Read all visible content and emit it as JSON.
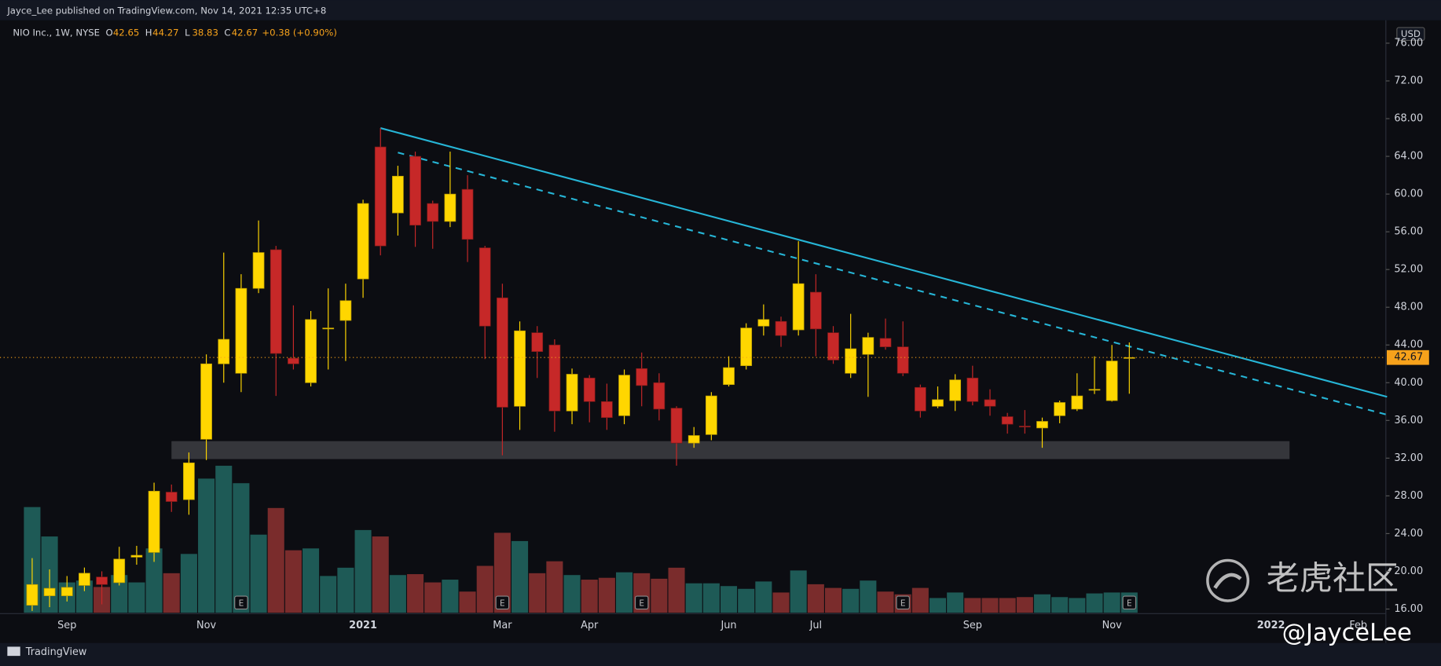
{
  "chart_data": {
    "type": "candlestick",
    "publisher": "Jayce_Lee published on TradingView.com, Nov 14, 2021 12:35 UTC+8",
    "title": "NIO Inc., 1W, NYSE",
    "ohlc_letters": [
      "O",
      "H",
      "L",
      "C"
    ],
    "change": "+0.38 (+0.90%)",
    "currency": "USD",
    "brand": "TradingView",
    "watermark": "老虎社区",
    "author_tag": "@JayceLee",
    "earnings_marker": "E",
    "earnings_weeks": [
      12,
      27,
      35,
      50,
      63
    ],
    "up_color": "#ffd600",
    "down_color": "#c62828",
    "volume_up_color": "#1e5a56",
    "volume_down_color": "#7a2c2c",
    "categories": [
      null,
      null,
      "Sep",
      null,
      null,
      null,
      null,
      null,
      null,
      null,
      "Nov",
      null,
      null,
      null,
      null,
      null,
      null,
      null,
      null,
      "2021",
      null,
      null,
      null,
      null,
      null,
      null,
      null,
      "Mar",
      null,
      null,
      null,
      null,
      "Apr",
      null,
      null,
      null,
      null,
      null,
      null,
      null,
      "Jun",
      null,
      null,
      null,
      null,
      "Jul",
      null,
      null,
      null,
      null,
      null,
      null,
      null,
      null,
      "Sep",
      null,
      null,
      null,
      null,
      null,
      null,
      null,
      "Nov",
      null
    ],
    "future_categories": [
      "2022",
      "Feb"
    ],
    "open": [
      16.4,
      17.4,
      17.4,
      18.5,
      19.4,
      18.8,
      21.5,
      22,
      28.4,
      27.6,
      34,
      42,
      41,
      50,
      54.1,
      42.6,
      40,
      45.7,
      46.6,
      51,
      65,
      58,
      64,
      59,
      57.1,
      60.5,
      54.3,
      49,
      37.5,
      45.3,
      44,
      37,
      40.5,
      38,
      36.5,
      41.5,
      40,
      37.3,
      33.6,
      34.5,
      39.8,
      41.8,
      46,
      46.5,
      45.6,
      49.6,
      45.3,
      41,
      43,
      44.7,
      43.8,
      39.5,
      37.5,
      38.1,
      40.5,
      38.2,
      36.4,
      35.4,
      35.2,
      36.5,
      37.2,
      39.2,
      38.1,
      42.65
    ],
    "high": [
      21.4,
      20.2,
      19.5,
      20.4,
      20,
      22.6,
      22.7,
      29.4,
      29.2,
      32.6,
      43,
      53.8,
      51.5,
      57.2,
      54.5,
      48.2,
      47.6,
      50,
      50.5,
      59.4,
      67,
      63,
      64.5,
      59.3,
      64.5,
      62,
      54.5,
      50.5,
      46.5,
      46,
      44.6,
      41.5,
      40.8,
      39.9,
      41.4,
      43.2,
      41,
      37.5,
      35.3,
      39,
      42.8,
      46.3,
      48.3,
      47,
      55,
      51.5,
      46,
      47.3,
      45.3,
      46.8,
      46.5,
      39.8,
      39.6,
      40.9,
      41.8,
      39.3,
      36.8,
      37.1,
      36.3,
      38.1,
      41,
      42.8,
      44,
      44.27
    ],
    "low": [
      15.8,
      16.2,
      16.8,
      17.9,
      16.5,
      18.5,
      20.7,
      21,
      26.3,
      26,
      31.8,
      40,
      39,
      49.5,
      38.6,
      41.4,
      39.6,
      41.4,
      42.3,
      49,
      53.5,
      55.6,
      54.4,
      54.2,
      56.5,
      52.8,
      42.5,
      32.3,
      35,
      40.5,
      34.8,
      35.6,
      35.8,
      35,
      35.6,
      37.5,
      36,
      31.2,
      33.1,
      33.9,
      39.6,
      41.4,
      45,
      43.8,
      45,
      42.8,
      42,
      40.5,
      38.5,
      43.5,
      40.7,
      36.3,
      37.3,
      37,
      37.6,
      36.5,
      34.6,
      34.6,
      33.1,
      35.7,
      37,
      38.8,
      38,
      38.83
    ],
    "close": [
      18.6,
      18.2,
      18.3,
      19.8,
      18.6,
      21.3,
      21.7,
      28.5,
      27.4,
      31.5,
      42,
      44.6,
      50,
      53.8,
      43.1,
      42,
      46.7,
      45.8,
      48.7,
      59,
      54.5,
      61.9,
      56.7,
      57.1,
      60,
      55.2,
      46,
      37.4,
      45.5,
      43.3,
      37,
      40.9,
      38,
      36.3,
      40.8,
      39.7,
      37.2,
      33.6,
      34.4,
      38.6,
      41.6,
      45.8,
      46.7,
      45,
      50.5,
      45.7,
      42.4,
      43.6,
      44.8,
      43.8,
      41,
      37,
      38.2,
      40.3,
      38,
      37.5,
      35.6,
      35.3,
      35.9,
      37.9,
      38.6,
      39.3,
      42.3,
      42.67
    ],
    "volume": [
      115,
      83,
      33,
      35,
      28,
      41,
      33,
      70,
      43,
      64,
      146,
      160,
      141,
      85,
      114,
      68,
      70,
      40,
      49,
      90,
      83,
      41,
      42,
      33,
      36,
      23,
      51,
      87,
      78,
      43,
      56,
      41,
      36,
      38,
      44,
      43,
      37,
      49,
      32,
      32,
      29,
      26,
      34,
      22,
      46,
      31,
      27,
      26,
      35,
      23,
      20,
      27,
      16,
      22,
      16,
      16,
      16,
      17,
      20,
      17,
      16,
      21,
      22,
      22
    ],
    "last_price": {
      "value": 42.67,
      "label": "42.67"
    },
    "support_zone": {
      "from": 8,
      "to": 72.2,
      "low": 31.9,
      "high": 33.8
    },
    "trendlines": [
      {
        "style": "solid",
        "color": "#26b5d6",
        "points": [
          [
            20,
            67
          ],
          [
            77.8,
            38.5
          ]
        ]
      },
      {
        "style": "dashed",
        "color": "#26b5d6",
        "points": [
          [
            21,
            64.4
          ],
          [
            77.8,
            36.6
          ]
        ]
      }
    ],
    "ylim": [
      16,
      76
    ],
    "yticks": [
      {
        "value": 16,
        "label": "16.00"
      },
      {
        "value": 20,
        "label": "20.00"
      },
      {
        "value": 24,
        "label": "24.00"
      },
      {
        "value": 28,
        "label": "28.00"
      },
      {
        "value": 32,
        "label": "32.00"
      },
      {
        "value": 36,
        "label": "36.00"
      },
      {
        "value": 40,
        "label": "40.00"
      },
      {
        "value": 44,
        "label": "44.00"
      },
      {
        "value": 48,
        "label": "48.00"
      },
      {
        "value": 52,
        "label": "52.00"
      },
      {
        "value": 56,
        "label": "56.00"
      },
      {
        "value": 60,
        "label": "60.00"
      },
      {
        "value": 64,
        "label": "64.00"
      },
      {
        "value": 68,
        "label": "68.00"
      },
      {
        "value": 72,
        "label": "72.00"
      },
      {
        "value": 76,
        "label": "76.00"
      }
    ]
  }
}
